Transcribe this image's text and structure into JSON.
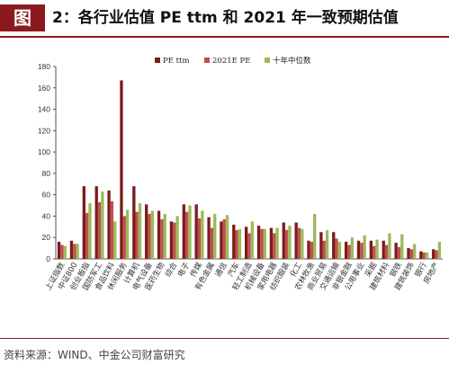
{
  "header": {
    "badge": "图",
    "title": "2：各行业估值 PE ttm 和 2021 年一致预期估值"
  },
  "footer": {
    "source": "资料来源：WIND、中金公司财富研究"
  },
  "colors": {
    "accent": "#8b1a1e",
    "pe_ttm": "#7b1c1c",
    "pe_2021e": "#c0504d",
    "median": "#9bbb59"
  },
  "chart_data": {
    "type": "bar",
    "title": "",
    "xlabel": "",
    "ylabel": "",
    "ylim": [
      0,
      180
    ],
    "yticks": [
      0,
      20,
      40,
      60,
      80,
      100,
      120,
      140,
      160,
      180
    ],
    "legend_position": "top-right",
    "grid": false,
    "categories": [
      "上证指数",
      "中证800",
      "创业板指",
      "国防军工",
      "食品饮料",
      "休闲服务",
      "计算机",
      "电气设备",
      "医药生物",
      "综合",
      "电子",
      "传媒",
      "有色金属",
      "通信",
      "汽车",
      "轻工制造",
      "机械设备",
      "家用电器",
      "纺织服装",
      "化工",
      "农林牧渔",
      "商业贸易",
      "交通运输",
      "非银金融",
      "公用事业",
      "采掘",
      "建筑材料",
      "钢铁",
      "建筑装饰",
      "银行",
      "房地产"
    ],
    "series": [
      {
        "name": "PE ttm",
        "values": [
          16,
          17,
          68,
          68,
          64,
          167,
          68,
          51,
          45,
          35,
          51,
          51,
          39,
          35,
          32,
          30,
          31,
          29,
          34,
          34,
          17,
          25,
          25,
          16,
          17,
          17,
          17,
          15,
          10,
          7,
          9
        ]
      },
      {
        "name": "2021E PE",
        "values": [
          13,
          14,
          43,
          53,
          54,
          40,
          44,
          42,
          37,
          34,
          44,
          38,
          29,
          37,
          27,
          24,
          28,
          24,
          27,
          29,
          16,
          17,
          19,
          13,
          15,
          12,
          13,
          11,
          9,
          6,
          8
        ]
      },
      {
        "name": "十年中位数",
        "values": [
          12,
          14,
          52,
          63,
          35,
          46,
          52,
          45,
          42,
          40,
          50,
          45,
          42,
          41,
          28,
          35,
          28,
          29,
          31,
          28,
          42,
          27,
          16,
          20,
          22,
          18,
          24,
          23,
          14,
          6,
          16
        ]
      }
    ]
  }
}
